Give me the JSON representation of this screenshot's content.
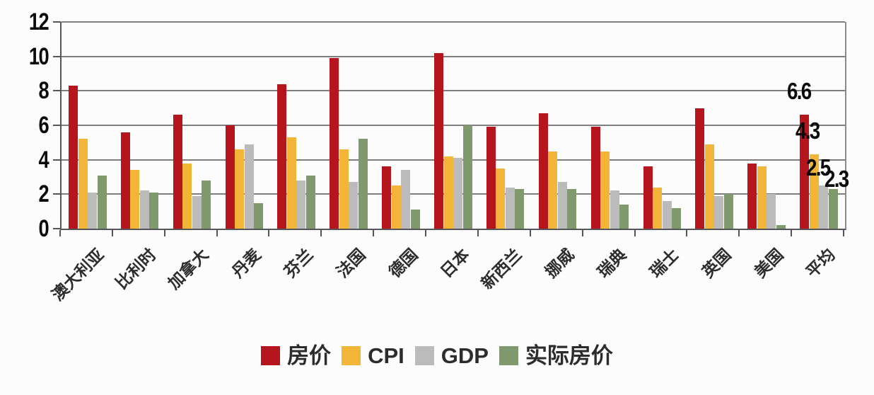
{
  "chart_data": {
    "type": "bar",
    "title": "",
    "xlabel": "",
    "ylabel": "",
    "ylim": [
      0,
      12
    ],
    "yticks": [
      0,
      2,
      4,
      6,
      8,
      10,
      12
    ],
    "grid": true,
    "legend_position": "bottom",
    "categories": [
      "澳大利亚",
      "比利时",
      "加拿大",
      "丹麦",
      "芬兰",
      "法国",
      "德国",
      "日本",
      "新西兰",
      "挪威",
      "瑞典",
      "瑞士",
      "英国",
      "美国",
      "平均"
    ],
    "series": [
      {
        "name": "房价",
        "color": "#b5151d",
        "values": [
          8.3,
          5.6,
          6.6,
          6.0,
          8.4,
          9.9,
          3.6,
          10.2,
          5.9,
          6.7,
          5.9,
          3.6,
          7.0,
          3.8,
          6.6
        ]
      },
      {
        "name": "CPI",
        "color": "#f2b538",
        "values": [
          5.2,
          3.4,
          3.8,
          4.6,
          5.3,
          4.6,
          2.5,
          4.2,
          3.5,
          4.5,
          4.5,
          2.4,
          4.9,
          3.6,
          4.3
        ]
      },
      {
        "name": "GDP",
        "color": "#bcbbbc",
        "values": [
          2.1,
          2.2,
          1.9,
          4.9,
          2.8,
          2.7,
          3.4,
          4.1,
          2.4,
          2.7,
          2.2,
          1.6,
          1.9,
          2.0,
          2.5
        ]
      },
      {
        "name": "实际房价",
        "color": "#819a6d",
        "values": [
          3.1,
          2.1,
          2.8,
          1.5,
          3.1,
          5.2,
          1.1,
          6.0,
          2.3,
          2.3,
          1.4,
          1.2,
          2.0,
          0.2,
          2.3
        ]
      }
    ],
    "annotated_category": "平均",
    "annotation_values": [
      "6.6",
      "4.3",
      "2.5",
      "2.3"
    ]
  }
}
